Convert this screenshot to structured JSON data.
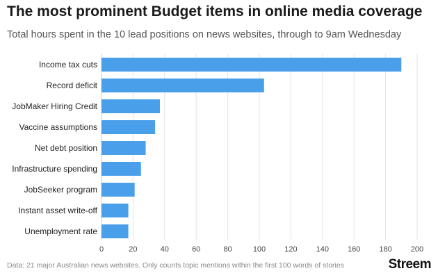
{
  "header": {
    "title": "The most prominent Budget items in online media coverage",
    "subtitle": "Total hours spent in the 10 lead positions on news websites, through to 9am Wednesday"
  },
  "footer": {
    "note": "Data: 21 major Australian news websites. Only counts topic mentions within the first 100 words of stories",
    "brand": "Streem"
  },
  "colors": {
    "bar": "#4a9fea",
    "grid": "#e3e3e3",
    "axis": "#cccccc"
  },
  "chart_data": {
    "type": "bar",
    "orientation": "horizontal",
    "title": "The most prominent Budget items in online media coverage",
    "subtitle": "Total hours spent in the 10 lead positions on news websites, through to 9am Wednesday",
    "xlabel": "",
    "ylabel": "",
    "categories": [
      "Income tax cuts",
      "Record deficit",
      "JobMaker Hiring Credit",
      "Vaccine assumptions",
      "Net debt position",
      "Infrastructure spending",
      "JobSeeker program",
      "Instant asset write-off",
      "Unemployment rate"
    ],
    "values": [
      190,
      103,
      37,
      34,
      28,
      25,
      21,
      17,
      17
    ],
    "xlim": [
      0,
      200
    ],
    "xticks": [
      0,
      20,
      40,
      60,
      80,
      100,
      120,
      140,
      160,
      180,
      200
    ],
    "grid": true
  }
}
